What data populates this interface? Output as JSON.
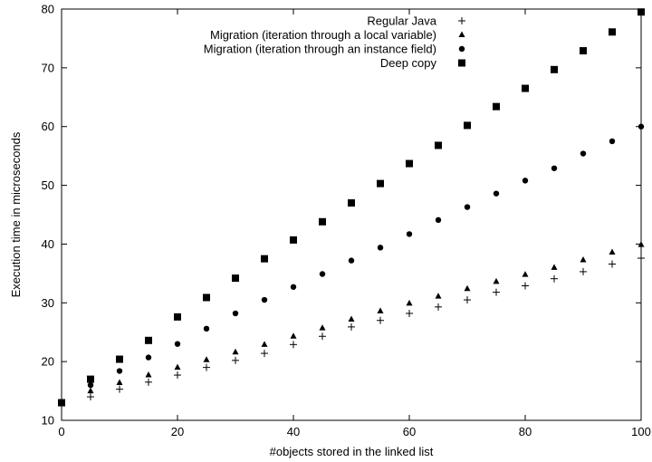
{
  "chart_data": {
    "type": "scatter",
    "xlabel": "#objects stored in the linked list",
    "ylabel": "Execution time in microseconds",
    "xlim": [
      0,
      100
    ],
    "ylim": [
      10,
      80
    ],
    "x_ticks": [
      0,
      20,
      40,
      60,
      80,
      100
    ],
    "y_ticks": [
      10,
      20,
      30,
      40,
      50,
      60,
      70,
      80
    ],
    "grid": false,
    "legend_position": "top-right",
    "series": [
      {
        "name": "Regular Java",
        "marker": "plus",
        "color": "#000000",
        "x": [
          0,
          5,
          10,
          15,
          20,
          25,
          30,
          35,
          40,
          45,
          50,
          55,
          60,
          65,
          70,
          75,
          80,
          85,
          90,
          95,
          100
        ],
        "y": [
          13.0,
          14.0,
          15.3,
          16.5,
          17.7,
          19.0,
          20.2,
          21.4,
          22.9,
          24.3,
          25.9,
          27.0,
          28.2,
          29.3,
          30.5,
          31.8,
          32.9,
          34.1,
          35.3,
          36.6,
          37.6
        ]
      },
      {
        "name": "Migration (iteration through a local variable)",
        "marker": "triangle",
        "color": "#000000",
        "x": [
          0,
          5,
          10,
          15,
          20,
          25,
          30,
          35,
          40,
          45,
          50,
          55,
          60,
          65,
          70,
          75,
          80,
          85,
          90,
          95,
          100
        ],
        "y": [
          13.0,
          15.0,
          16.4,
          17.7,
          19.0,
          20.3,
          21.6,
          22.9,
          24.3,
          25.7,
          27.2,
          28.6,
          29.9,
          31.1,
          32.4,
          33.6,
          34.8,
          36.0,
          37.3,
          38.6,
          39.9
        ]
      },
      {
        "name": "Migration (iteration through an instance field)",
        "marker": "circle",
        "color": "#000000",
        "x": [
          0,
          5,
          10,
          15,
          20,
          25,
          30,
          35,
          40,
          45,
          50,
          55,
          60,
          65,
          70,
          75,
          80,
          85,
          90,
          95,
          100
        ],
        "y": [
          13.0,
          16.0,
          18.4,
          20.7,
          23.0,
          25.6,
          28.2,
          30.5,
          32.7,
          34.9,
          37.2,
          39.4,
          41.7,
          44.1,
          46.3,
          48.6,
          50.8,
          52.9,
          55.4,
          57.5,
          60.0
        ]
      },
      {
        "name": "Deep copy",
        "marker": "square",
        "color": "#000000",
        "x": [
          0,
          5,
          10,
          15,
          20,
          25,
          30,
          35,
          40,
          45,
          50,
          55,
          60,
          65,
          70,
          75,
          80,
          85,
          90,
          95,
          100
        ],
        "y": [
          13.0,
          17.0,
          20.4,
          23.6,
          27.6,
          30.9,
          34.2,
          37.5,
          40.7,
          43.8,
          47.0,
          50.3,
          53.7,
          56.8,
          60.2,
          63.4,
          66.5,
          69.7,
          72.9,
          76.1,
          79.5
        ]
      }
    ]
  }
}
